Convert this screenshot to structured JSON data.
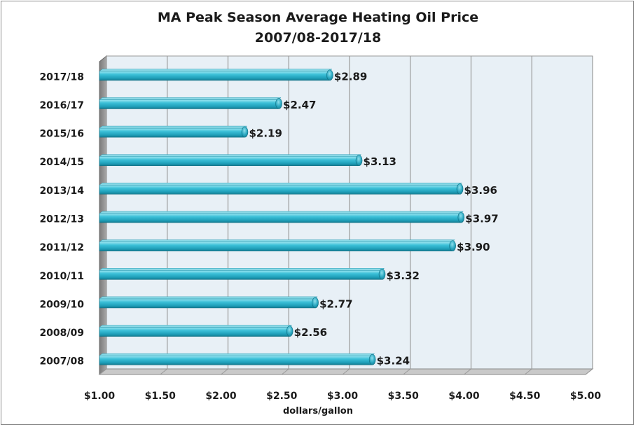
{
  "chart_data": {
    "type": "bar",
    "orientation": "horizontal",
    "title": "MA Peak Season Average Heating Oil Price",
    "subtitle": "2007/08-2017/18",
    "xlabel": "dollars/gallon",
    "ylabel": "",
    "xlim": [
      1.0,
      5.0
    ],
    "x_ticks": [
      "$1.00",
      "$1.50",
      "$2.00",
      "$2.50",
      "$3.00",
      "$3.50",
      "$4.00",
      "$4.50",
      "$5.00"
    ],
    "categories": [
      "2007/08",
      "2008/09",
      "2009/10",
      "2010/11",
      "2011/12",
      "2012/13",
      "2013/14",
      "2014/15",
      "2015/16",
      "2016/17",
      "2017/18"
    ],
    "values": [
      3.24,
      2.56,
      2.77,
      3.32,
      3.9,
      3.97,
      3.96,
      3.13,
      2.19,
      2.47,
      2.89
    ],
    "data_labels": [
      "$3.24",
      "$2.56",
      "$2.77",
      "$3.32",
      "$3.90",
      "$3.97",
      "$3.96",
      "$3.13",
      "$2.19",
      "$2.47",
      "$2.89"
    ],
    "grid": true,
    "legend": "none",
    "colors": {
      "bar": "#2fb4cc",
      "bar_light": "#7fdcea",
      "bar_dark": "#137c92",
      "plot_bg": "#e8f0f6",
      "grid": "#9a9a9a"
    }
  }
}
